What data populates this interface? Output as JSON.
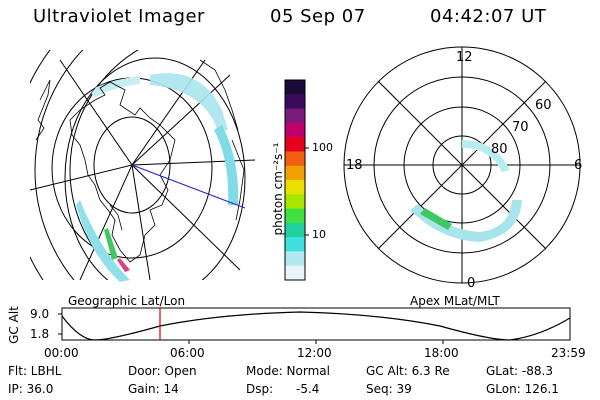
{
  "header": {
    "title": "Ultraviolet Imager",
    "date": "05 Sep 07",
    "time": "04:42:07 UT"
  },
  "colorbar": {
    "label": "photon cm⁻²s⁻¹",
    "ticks": [
      "100",
      "10"
    ],
    "colors": [
      "#1a0a3a",
      "#3a0a5a",
      "#7a1a7a",
      "#c0006a",
      "#e80020",
      "#f06010",
      "#f0a000",
      "#e8e000",
      "#a8e800",
      "#40e040",
      "#20d0a0",
      "#40e0e0",
      "#b0e8f0",
      "#e8f4f8"
    ]
  },
  "left_panel": {
    "caption": "Geographic Lat/Lon"
  },
  "right_panel": {
    "caption": "Apex MLat/MLT",
    "mlt_labels": {
      "top": "12",
      "left": "18",
      "right": "6",
      "bottom": "0"
    },
    "lat_labels": [
      "60",
      "70",
      "80"
    ]
  },
  "timeline": {
    "axis_label": "GC Alt",
    "y_ticks": [
      "9.0",
      "1.8"
    ],
    "x_ticks": [
      "00:00",
      "06:00",
      "12:00",
      "18:00",
      "23:59"
    ],
    "marker_color": "#e00000"
  },
  "info": {
    "flt": "Flt: LBHL",
    "ip": "IP: 36.0",
    "door": "Door: Open",
    "gain": "Gain: 14",
    "mode": "Mode: Normal",
    "dsp_label": "Dsp:",
    "dsp_value": "-5.4",
    "gc_alt": "GC Alt: 6.3 Re",
    "seq": "Seq: 39",
    "glat": "GLat: -88.3",
    "glon": "GLon: 126.1"
  }
}
